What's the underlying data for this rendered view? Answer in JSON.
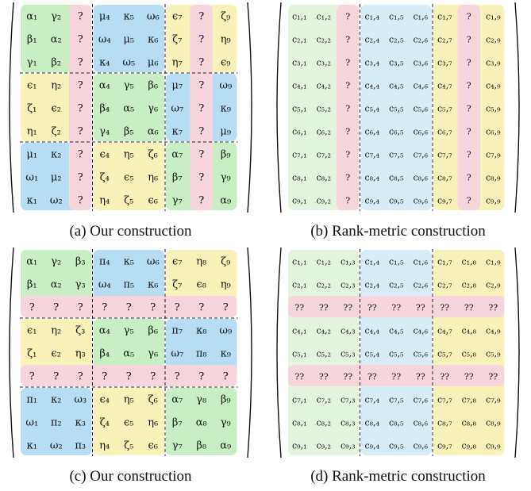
{
  "colors": {
    "green": "#c8efc3",
    "lightgreen": "#e3f5df",
    "pink": "#f6d5dc",
    "yellow": "#f8f1b8",
    "blue": "#b7ddf4",
    "lightblue": "#d6ecf7"
  },
  "panels": [
    {
      "id": "a",
      "caption": "(a) Our construction",
      "cells": [
        [
          "α₁",
          "γ₂",
          "?",
          "μ₄",
          "κ₅",
          "ω₆",
          "ϵ₇",
          "?",
          "ζ₉"
        ],
        [
          "β₁",
          "α₂",
          "?",
          "ω₄",
          "μ₅",
          "κ₆",
          "ζ₇",
          "?",
          "η₉"
        ],
        [
          "γ₁",
          "β₂",
          "?",
          "κ₄",
          "ω₅",
          "μ₆",
          "η₇",
          "?",
          "ϵ₉"
        ],
        [
          "ϵ₁",
          "η₂",
          "?",
          "α₄",
          "γ₅",
          "β₆",
          "μ₇",
          "?",
          "ω₉"
        ],
        [
          "ζ₁",
          "ϵ₂",
          "?",
          "β₄",
          "α₅",
          "γ₆",
          "ω₇",
          "?",
          "κ₉"
        ],
        [
          "η₁",
          "ζ₂",
          "?",
          "γ₄",
          "β₅",
          "α₆",
          "κ₇",
          "?",
          "μ₉"
        ],
        [
          "μ₁",
          "κ₂",
          "?",
          "ϵ₄",
          "η₅",
          "ζ₆",
          "α₇",
          "?",
          "β₉"
        ],
        [
          "ω₁",
          "μ₂",
          "?",
          "ζ₄",
          "ϵ₅",
          "η₆",
          "β₇",
          "?",
          "γ₉"
        ],
        [
          "κ₁",
          "ω₂",
          "?",
          "η₄",
          "ζ₅",
          "ϵ₆",
          "γ₇",
          "?",
          "α₉"
        ]
      ]
    },
    {
      "id": "b",
      "caption": "(b) Rank-metric construction",
      "cells": [
        [
          "c₁,₁",
          "c₁,₂",
          "?",
          "c₁,₄",
          "c₁,₅",
          "c₁,₆",
          "c₁,₇",
          "?",
          "c₁,₉"
        ],
        [
          "c₂,₁",
          "c₂,₂",
          "?",
          "c₂,₄",
          "c₂,₅",
          "c₂,₆",
          "c₂,₇",
          "?",
          "c₂,₉"
        ],
        [
          "c₃,₁",
          "c₃,₂",
          "?",
          "c₃,₄",
          "c₃,₅",
          "c₃,₆",
          "c₃,₇",
          "?",
          "c₃,₉"
        ],
        [
          "c₄,₁",
          "c₄,₂",
          "?",
          "c₄,₄",
          "c₄,₅",
          "c₄,₆",
          "c₄,₇",
          "?",
          "c₄,₉"
        ],
        [
          "c₅,₁",
          "c₅,₂",
          "?",
          "c₅,₄",
          "c₅,₅",
          "c₅,₆",
          "c₅,₇",
          "?",
          "c₅,₉"
        ],
        [
          "c₆,₁",
          "c₆,₂",
          "?",
          "c₆,₄",
          "c₆,₅",
          "c₆,₆",
          "c₆,₇",
          "?",
          "c₆,₉"
        ],
        [
          "c₇,₁",
          "c₇,₂",
          "?",
          "c₇,₄",
          "c₇,₅",
          "c₇,₆",
          "c₇,₇",
          "?",
          "c₇,₉"
        ],
        [
          "c₈,₁",
          "c₈,₂",
          "?",
          "c₈,₄",
          "c₈,₅",
          "c₈,₆",
          "c₈,₇",
          "?",
          "c₈,₉"
        ],
        [
          "c₉,₁",
          "c₉,₂",
          "?",
          "c₉,₄",
          "c₉,₅",
          "c₉,₆",
          "c₉,₇",
          "?",
          "c₉,₉"
        ]
      ]
    },
    {
      "id": "c",
      "caption": "(c) Our construction",
      "cells": [
        [
          "α₁",
          "γ₂",
          "β₃",
          "π₄",
          "κ₅",
          "ω₆",
          "ϵ₇",
          "η₈",
          "ζ₉"
        ],
        [
          "β₁",
          "α₂",
          "γ₃",
          "ω₄",
          "π₅",
          "κ₆",
          "ζ₇",
          "ϵ₈",
          "η₉"
        ],
        [
          "?",
          "?",
          "?",
          "?",
          "?",
          "?",
          "?",
          "?",
          "?"
        ],
        [
          "ϵ₁",
          "η₂",
          "ζ₃",
          "α₄",
          "γ₅",
          "β₆",
          "π₇",
          "κ₈",
          "ω₉"
        ],
        [
          "ζ₁",
          "ϵ₂",
          "η₃",
          "β₄",
          "α₅",
          "γ₆",
          "ω₇",
          "π₈",
          "κ₉"
        ],
        [
          "?",
          "?",
          "?",
          "?",
          "?",
          "?",
          "?",
          "?",
          "?"
        ],
        [
          "π₁",
          "κ₂",
          "ω₃",
          "ϵ₄",
          "η₅",
          "ζ₆",
          "α₇",
          "γ₈",
          "β₉"
        ],
        [
          "ω₁",
          "π₂",
          "κ₃",
          "ζ₄",
          "ϵ₅",
          "η₆",
          "β₇",
          "α₈",
          "γ₉"
        ],
        [
          "κ₁",
          "ω₂",
          "π₃",
          "η₄",
          "ζ₅",
          "ϵ₆",
          "γ₇",
          "β₈",
          "α₉"
        ]
      ]
    },
    {
      "id": "d",
      "caption": "(d) Rank-metric construction",
      "cells": [
        [
          "c₁,₁",
          "c₁,₂",
          "c₁,₃",
          "c₁,₄",
          "c₁,₅",
          "c₁,₆",
          "c₁,₇",
          "c₁,₈",
          "c₁,₉"
        ],
        [
          "c₂,₁",
          "c₂,₂",
          "c₂,₃",
          "c₂,₄",
          "c₂,₅",
          "c₂,₆",
          "c₂,₇",
          "c₂,₈",
          "c₂,₉"
        ],
        [
          "??",
          "??",
          "??",
          "??",
          "??",
          "??",
          "??",
          "??",
          "??"
        ],
        [
          "c₄,₁",
          "c₄,₂",
          "c₄,₃",
          "c₄,₄",
          "c₄,₅",
          "c₄,₆",
          "c₄,₇",
          "c₄,₈",
          "c₄,₉"
        ],
        [
          "c₅,₁",
          "c₅,₂",
          "c₅,₃",
          "c₅,₄",
          "c₅,₅",
          "c₅,₆",
          "c₅,₇",
          "c₅,₈",
          "c₅,₉"
        ],
        [
          "??",
          "??",
          "??",
          "??",
          "??",
          "??",
          "??",
          "??",
          "??"
        ],
        [
          "c₇,₁",
          "c₇,₂",
          "c₇,₃",
          "c₇,₄",
          "c₇,₅",
          "c₇,₆",
          "c₇,₇",
          "c₇,₈",
          "c₇,₉"
        ],
        [
          "c₈,₁",
          "c₈,₂",
          "c₈,₃",
          "c₈,₄",
          "c₈,₅",
          "c₈,₆",
          "c₈,₇",
          "c₈,₈",
          "c₈,₉"
        ],
        [
          "c₉,₁",
          "c₉,₂",
          "c₉,₃",
          "c₉,₄",
          "c₉,₅",
          "c₉,₆",
          "c₉,₇",
          "c₉,₈",
          "c₉,₉"
        ]
      ]
    }
  ]
}
